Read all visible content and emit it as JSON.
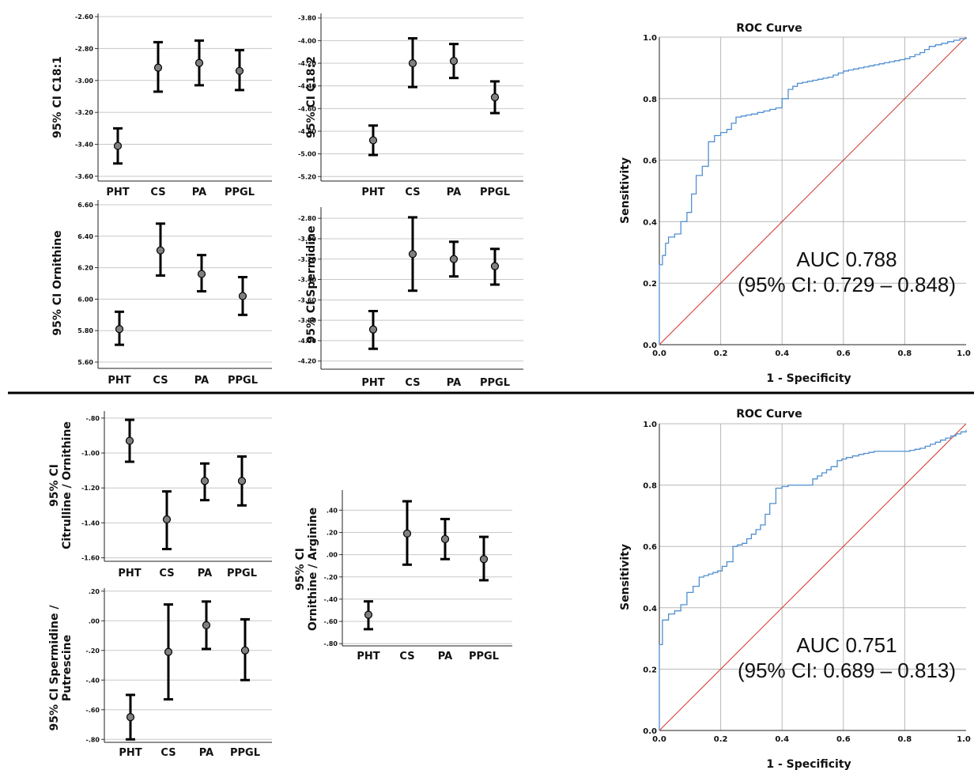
{
  "chart_data": [
    {
      "type": "errorbar",
      "ylabel": [
        "95% CI C18:1"
      ],
      "categories": [
        "PHT",
        "CS",
        "PA",
        "PPGL"
      ],
      "ylim": [
        -3.63,
        -2.58
      ],
      "yticks": [
        "-2.60",
        "-2.80",
        "-3.00",
        "-3.20",
        "-3.40",
        "-3.60"
      ],
      "means": [
        -3.41,
        -2.92,
        -2.89,
        -2.94
      ],
      "lower": [
        -3.52,
        -3.07,
        -3.03,
        -3.06
      ],
      "upper": [
        -3.3,
        -2.76,
        -2.75,
        -2.81
      ]
    },
    {
      "type": "errorbar",
      "ylabel": [
        "95% CI C18:2"
      ],
      "categories": [
        "PHT",
        "CS",
        "PA",
        "PPGL"
      ],
      "ylim": [
        -5.24,
        -3.76
      ],
      "yticks": [
        "-3.80",
        "-4.00",
        "-4.20",
        "-4.40",
        "-4.60",
        "-4.80",
        "-5.00",
        "-5.20"
      ],
      "means": [
        -4.88,
        -4.2,
        -4.18,
        -4.5
      ],
      "lower": [
        -5.01,
        -4.41,
        -4.33,
        -4.64
      ],
      "upper": [
        -4.75,
        -3.98,
        -4.03,
        -4.36
      ]
    },
    {
      "type": "errorbar",
      "ylabel": [
        "95% CI Ornithine"
      ],
      "categories": [
        "PHT",
        "CS",
        "PA",
        "PPGL"
      ],
      "ylim": [
        5.56,
        6.63
      ],
      "yticks": [
        "6.60",
        "6.40",
        "6.20",
        "6.00",
        "5.80",
        "5.60"
      ],
      "means": [
        5.81,
        6.31,
        6.16,
        6.02
      ],
      "lower": [
        5.71,
        6.15,
        6.05,
        5.9
      ],
      "upper": [
        5.92,
        6.48,
        6.28,
        6.14
      ]
    },
    {
      "type": "errorbar",
      "ylabel": [
        "95% CI Spermidine"
      ],
      "categories": [
        "PHT",
        "CS",
        "PA",
        "PPGL"
      ],
      "ylim": [
        -4.28,
        -2.69
      ],
      "yticks": [
        "-2.80",
        "-3.00",
        "-3.20",
        "-3.40",
        "-3.60",
        "-3.80",
        "-4.00",
        "-4.20"
      ],
      "means": [
        -3.89,
        -3.15,
        -3.2,
        -3.27
      ],
      "lower": [
        -4.08,
        -3.51,
        -3.37,
        -3.45
      ],
      "upper": [
        -3.71,
        -2.79,
        -3.03,
        -3.1
      ]
    },
    {
      "type": "errorbar",
      "ylabel": [
        "95% CI",
        "Citrulline / Ornithine"
      ],
      "categories": [
        "PHT",
        "CS",
        "PA",
        "PPGL"
      ],
      "ylim": [
        -1.62,
        -0.76
      ],
      "yticks": [
        "-.80",
        "-1.00",
        "-1.20",
        "-1.40",
        "-1.60"
      ],
      "means": [
        -0.93,
        -1.38,
        -1.16,
        -1.16
      ],
      "lower": [
        -1.05,
        -1.55,
        -1.27,
        -1.3
      ],
      "upper": [
        -0.81,
        -1.22,
        -1.06,
        -1.02
      ]
    },
    {
      "type": "errorbar",
      "ylabel": [
        "95% CI Spermidine /",
        "Putrescine"
      ],
      "categories": [
        "PHT",
        "CS",
        "PA",
        "PPGL"
      ],
      "ylim": [
        -0.82,
        0.22
      ],
      "yticks": [
        ".20",
        ".00",
        "-.20",
        "-.40",
        "-.60",
        "-.80"
      ],
      "means": [
        -0.65,
        -0.21,
        -0.03,
        -0.2
      ],
      "lower": [
        -0.8,
        -0.53,
        -0.19,
        -0.4
      ],
      "upper": [
        -0.5,
        0.11,
        0.13,
        0.01
      ]
    },
    {
      "type": "errorbar",
      "ylabel": [
        "95% CI",
        "Ornithine / Arginine"
      ],
      "categories": [
        "PHT",
        "CS",
        "PA",
        "PPGL"
      ],
      "ylim": [
        -0.82,
        0.58
      ],
      "yticks": [
        ".40",
        ".20",
        ".00",
        "-.20",
        "-.40",
        "-.60",
        "-.80"
      ],
      "means": [
        -0.54,
        0.19,
        0.14,
        -0.04
      ],
      "lower": [
        -0.67,
        -0.09,
        -0.04,
        -0.23
      ],
      "upper": [
        -0.42,
        0.48,
        0.32,
        0.16
      ]
    },
    {
      "type": "line",
      "title": "ROC Curve",
      "xlabel": "1 - Specificity",
      "ylabel": "Sensitivity",
      "xlim": [
        0,
        1
      ],
      "ylim": [
        0,
        1
      ],
      "ticks": [
        "0.0",
        "0.2",
        "0.4",
        "0.6",
        "0.8",
        "1.0"
      ],
      "auc": "AUC 0.788",
      "ci": "(95% CI: 0.729 – 0.848)",
      "curve": [
        [
          0,
          0
        ],
        [
          0,
          0.26
        ],
        [
          0.01,
          0.29
        ],
        [
          0.02,
          0.33
        ],
        [
          0.03,
          0.35
        ],
        [
          0.05,
          0.36
        ],
        [
          0.07,
          0.4
        ],
        [
          0.09,
          0.43
        ],
        [
          0.12,
          0.55
        ],
        [
          0.14,
          0.58
        ],
        [
          0.16,
          0.66
        ],
        [
          0.18,
          0.68
        ],
        [
          0.22,
          0.7
        ],
        [
          0.25,
          0.74
        ],
        [
          0.3,
          0.75
        ],
        [
          0.34,
          0.76
        ],
        [
          0.38,
          0.77
        ],
        [
          0.4,
          0.8
        ],
        [
          0.42,
          0.83
        ],
        [
          0.45,
          0.85
        ],
        [
          0.5,
          0.86
        ],
        [
          0.55,
          0.87
        ],
        [
          0.6,
          0.89
        ],
        [
          0.65,
          0.9
        ],
        [
          0.7,
          0.91
        ],
        [
          0.75,
          0.92
        ],
        [
          0.8,
          0.93
        ],
        [
          0.85,
          0.95
        ],
        [
          0.88,
          0.97
        ],
        [
          0.92,
          0.98
        ],
        [
          0.96,
          0.99
        ],
        [
          1,
          1
        ]
      ]
    },
    {
      "type": "line",
      "title": "ROC Curve",
      "xlabel": "1 - Specificity",
      "ylabel": "Sensitivity",
      "xlim": [
        0,
        1
      ],
      "ylim": [
        0,
        1
      ],
      "ticks": [
        "0.0",
        "0.2",
        "0.4",
        "0.6",
        "0.8",
        "1.0"
      ],
      "auc": "AUC 0.751",
      "ci": "(95% CI: 0.689 – 0.813)",
      "curve": [
        [
          0,
          0
        ],
        [
          0,
          0.28
        ],
        [
          0.01,
          0.36
        ],
        [
          0.03,
          0.38
        ],
        [
          0.05,
          0.39
        ],
        [
          0.07,
          0.41
        ],
        [
          0.09,
          0.45
        ],
        [
          0.11,
          0.47
        ],
        [
          0.13,
          0.5
        ],
        [
          0.16,
          0.51
        ],
        [
          0.19,
          0.52
        ],
        [
          0.22,
          0.55
        ],
        [
          0.24,
          0.6
        ],
        [
          0.27,
          0.61
        ],
        [
          0.3,
          0.64
        ],
        [
          0.33,
          0.67
        ],
        [
          0.36,
          0.74
        ],
        [
          0.38,
          0.79
        ],
        [
          0.42,
          0.8
        ],
        [
          0.48,
          0.8
        ],
        [
          0.5,
          0.82
        ],
        [
          0.53,
          0.84
        ],
        [
          0.56,
          0.86
        ],
        [
          0.58,
          0.88
        ],
        [
          0.61,
          0.89
        ],
        [
          0.65,
          0.9
        ],
        [
          0.7,
          0.91
        ],
        [
          0.8,
          0.91
        ],
        [
          0.85,
          0.92
        ],
        [
          0.9,
          0.94
        ],
        [
          0.95,
          0.96
        ],
        [
          1,
          0.98
        ]
      ]
    }
  ]
}
